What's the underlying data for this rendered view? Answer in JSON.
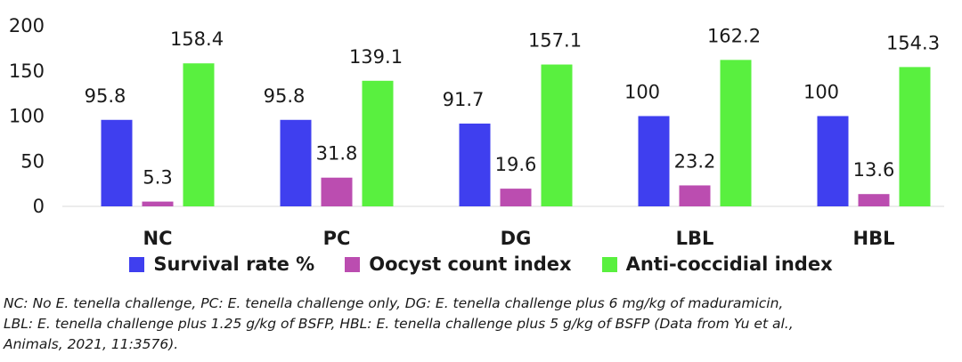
{
  "chart_data": {
    "type": "bar",
    "categories": [
      "NC",
      "PC",
      "DG",
      "LBL",
      "HBL"
    ],
    "series": [
      {
        "name": "Survival rate %",
        "values": [
          95.8,
          95.8,
          91.7,
          100,
          100
        ],
        "color": "#3f3fef"
      },
      {
        "name": "Oocyst count index",
        "values": [
          5.3,
          31.8,
          19.6,
          23.2,
          13.6
        ],
        "color": "#bb4db0"
      },
      {
        "name": "Anti-coccidial index",
        "values": [
          158.4,
          139.1,
          157.1,
          162.2,
          154.3
        ],
        "color": "#59f03f"
      }
    ],
    "yticks": [
      0,
      50,
      100,
      150,
      200
    ],
    "ylim": [
      0,
      200
    ],
    "grid": false,
    "legend_position": "bottom",
    "title": "",
    "xlabel": "",
    "ylabel": ""
  },
  "footnote": {
    "line1": "NC: No E. tenella challenge, PC: E. tenella challenge only, DG: E. tenella challenge plus 6 mg/kg of maduramicin,",
    "line2": "LBL: E. tenella challenge plus 1.25 g/kg of BSFP, HBL: E. tenella challenge plus 5 g/kg of BSFP (Data from Yu et al.,",
    "line3": "Animals, 2021, 11:3576)."
  }
}
